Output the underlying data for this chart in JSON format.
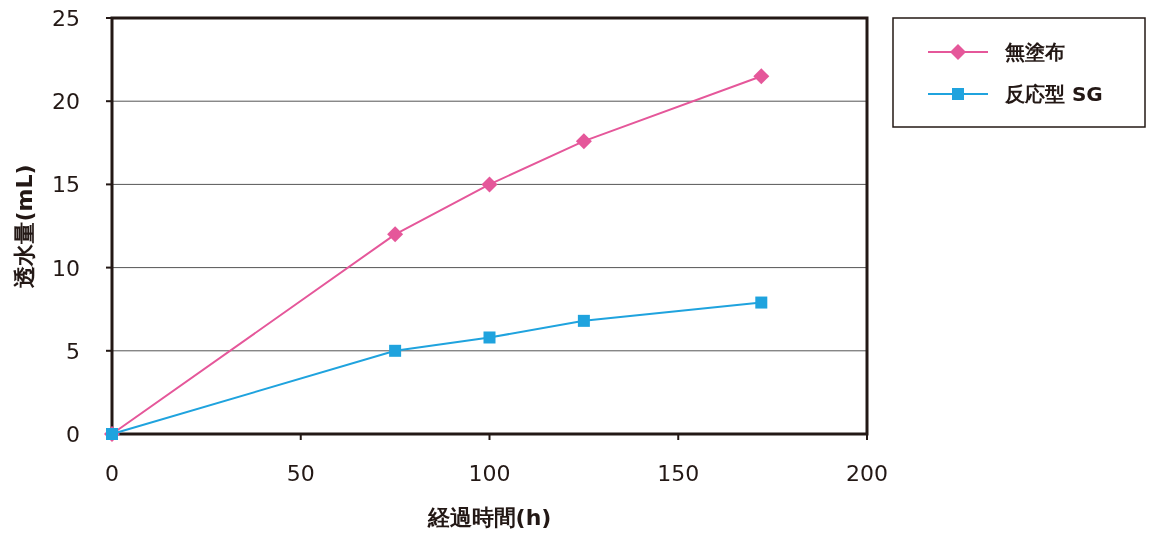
{
  "chart_data": {
    "type": "line",
    "xlabel": "経過時間(h)",
    "ylabel": "透水量(mL)",
    "xlim": [
      0,
      200
    ],
    "xticks": [
      0,
      50,
      100,
      150,
      200
    ],
    "ylim": [
      0,
      25
    ],
    "yticks": [
      0,
      5,
      10,
      15,
      20,
      25
    ],
    "grid": "y",
    "legend": "top right",
    "series": [
      {
        "name": "無塗布",
        "color": "#e5579a",
        "marker": "diamond",
        "x": [
          0,
          75,
          100,
          125,
          172
        ],
        "values": [
          0,
          12.0,
          15.0,
          17.6,
          21.5
        ]
      },
      {
        "name": "反応型 SG",
        "color": "#1fa3de",
        "marker": "square",
        "x": [
          0,
          75,
          100,
          125,
          172
        ],
        "values": [
          0,
          5.0,
          5.8,
          6.8,
          7.9
        ]
      }
    ]
  }
}
